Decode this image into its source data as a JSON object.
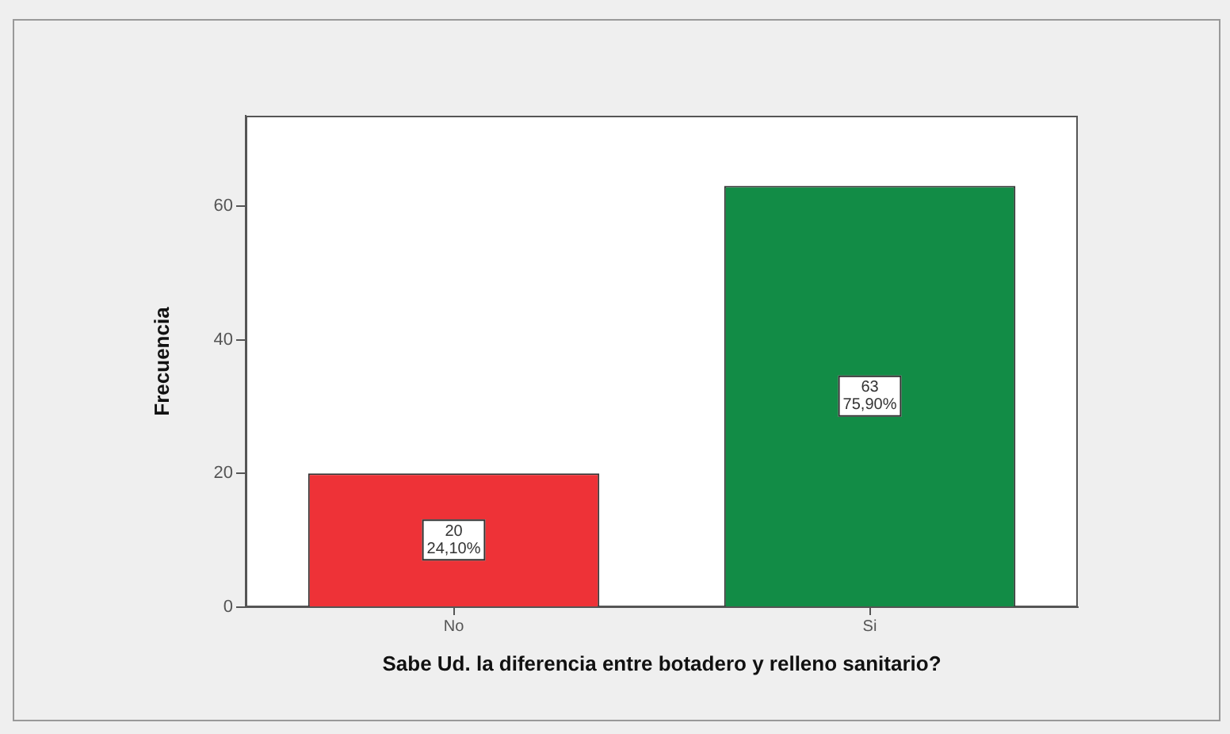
{
  "chart_data": {
    "type": "bar",
    "xlabel": "Sabe Ud. la diferencia entre botadero y relleno sanitario?",
    "ylabel": "Frecuencia",
    "categories": [
      "No",
      "Si"
    ],
    "values": [
      20,
      63
    ],
    "colors": [
      "#ee3237",
      "#128c46"
    ],
    "value_labels": [
      "20\n24,10%",
      "63\n75,90%"
    ],
    "ylim": [
      0,
      73.5
    ],
    "yticks": [
      0,
      20,
      40,
      60
    ]
  }
}
